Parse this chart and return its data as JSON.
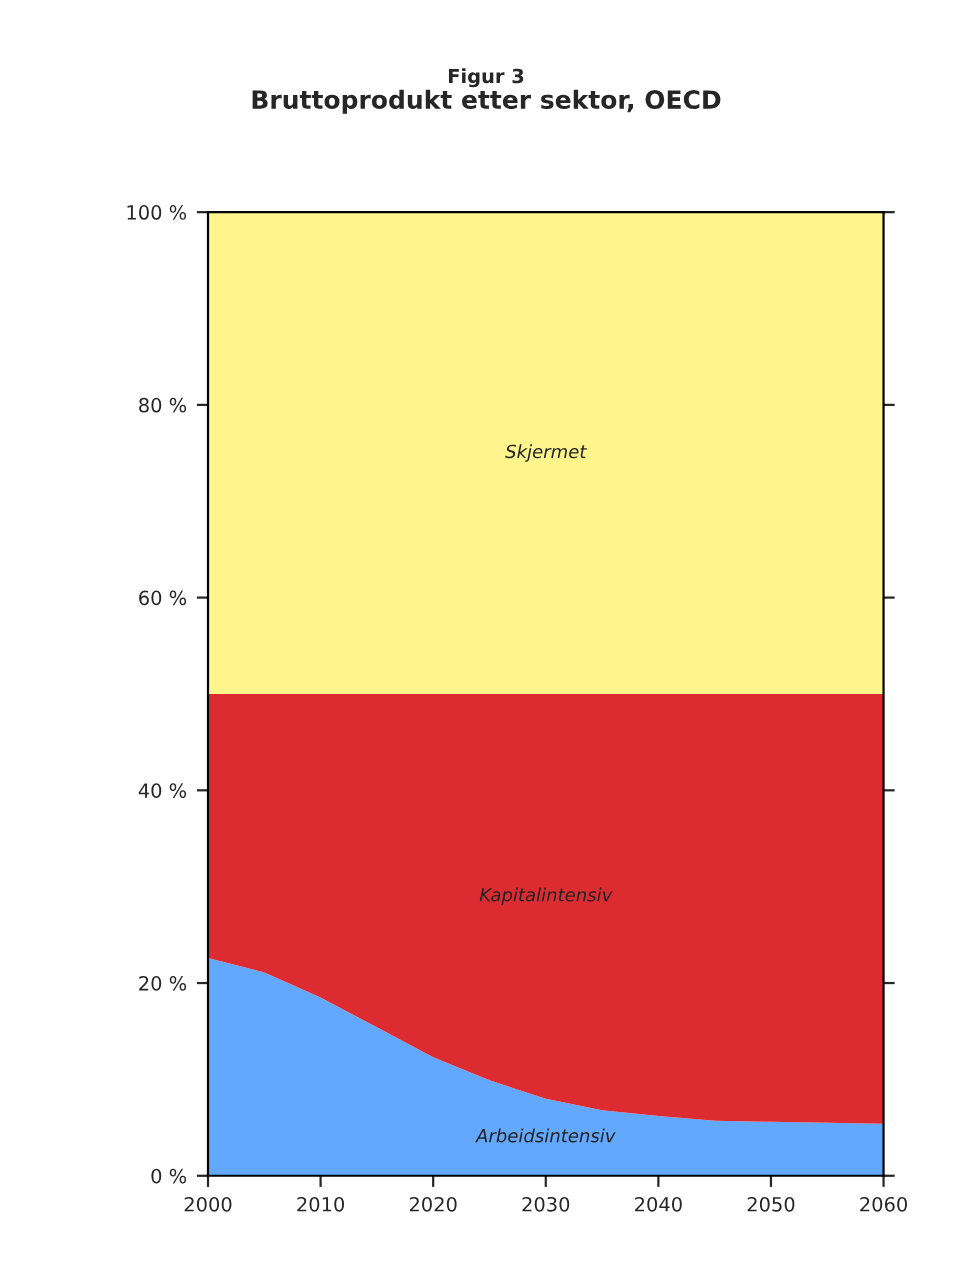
{
  "chart_data": {
    "type": "area",
    "stacked": true,
    "title": "Figur 3",
    "subtitle": "Bruttoprodukt etter sektor, OECD",
    "x": [
      2000,
      2005,
      2010,
      2015,
      2020,
      2025,
      2030,
      2035,
      2040,
      2045,
      2050,
      2055,
      2060
    ],
    "series": [
      {
        "name": "Arbeidsintensiv",
        "color": "#62a8ff",
        "values": [
          22.6,
          21.1,
          18.5,
          15.4,
          12.3,
          9.9,
          8.0,
          6.8,
          6.2,
          5.7,
          5.6,
          5.5,
          5.4
        ]
      },
      {
        "name": "Kapitalintensiv",
        "color": "#dc2c32",
        "values": [
          27.4,
          28.9,
          31.5,
          34.6,
          37.7,
          40.1,
          42.0,
          43.2,
          43.8,
          44.3,
          44.4,
          44.5,
          44.6
        ]
      },
      {
        "name": "Skjermet",
        "color": "#fff58c",
        "values": [
          50,
          50,
          50,
          50,
          50,
          50,
          50,
          50,
          50,
          50,
          50,
          50,
          50
        ]
      }
    ],
    "xlim": [
      2000,
      2060
    ],
    "xticks": [
      2000,
      2010,
      2020,
      2030,
      2040,
      2050,
      2060
    ],
    "ylim": [
      0,
      100
    ],
    "yticks": [
      {
        "value": 0,
        "label": "0 %"
      },
      {
        "value": 20,
        "label": "20 %"
      },
      {
        "value": 40,
        "label": "40 %"
      },
      {
        "value": 60,
        "label": "60 %"
      },
      {
        "value": 80,
        "label": "80 %"
      },
      {
        "value": 100,
        "label": "100 %"
      }
    ],
    "grid": false,
    "legend": false
  }
}
